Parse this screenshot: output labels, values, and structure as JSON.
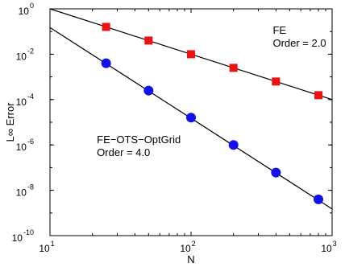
{
  "chart_data": {
    "type": "line",
    "xscale": "log",
    "yscale": "log",
    "xlim": [
      10,
      1000
    ],
    "ylim": [
      1e-10,
      1
    ],
    "xlabel": "N",
    "ylabel": "L∞ Error",
    "grid": false,
    "x_ticks": [
      {
        "value": 10,
        "mantissa": "10",
        "exp": "1"
      },
      {
        "value": 100,
        "mantissa": "10",
        "exp": "2"
      },
      {
        "value": 1000,
        "mantissa": "10",
        "exp": "3"
      }
    ],
    "y_ticks": [
      {
        "value": 1,
        "mantissa": "10",
        "exp": "0"
      },
      {
        "value": 0.01,
        "mantissa": "10",
        "exp": "-2"
      },
      {
        "value": 0.0001,
        "mantissa": "10",
        "exp": "-4"
      },
      {
        "value": 1e-06,
        "mantissa": "10",
        "exp": "-6"
      },
      {
        "value": 1e-08,
        "mantissa": "10",
        "exp": "-8"
      },
      {
        "value": 1e-10,
        "mantissa": "10",
        "exp": "-10"
      }
    ],
    "series": [
      {
        "marker": "square",
        "color": "#ee1111",
        "points": [
          {
            "x": 25,
            "y": 0.16
          },
          {
            "x": 50,
            "y": 0.04
          },
          {
            "x": 100,
            "y": 0.01
          },
          {
            "x": 200,
            "y": 0.0025
          },
          {
            "x": 400,
            "y": 0.000625
          },
          {
            "x": 800,
            "y": 0.000156
          }
        ],
        "fit": [
          {
            "x": 10,
            "y": 1.0
          },
          {
            "x": 1000,
            "y": 0.0001
          }
        ]
      },
      {
        "marker": "circle",
        "color": "#1111ee",
        "points": [
          {
            "x": 25,
            "y": 0.004
          },
          {
            "x": 50,
            "y": 0.00025
          },
          {
            "x": 100,
            "y": 1.6e-05
          },
          {
            "x": 200,
            "y": 1e-06
          },
          {
            "x": 400,
            "y": 6e-08
          },
          {
            "x": 800,
            "y": 4e-09
          }
        ],
        "fit": [
          {
            "x": 10,
            "y": 0.15
          },
          {
            "x": 1000,
            "y": 1.5e-09
          }
        ]
      }
    ],
    "annotations": [
      {
        "lines": [
          "FE",
          "Order = 2.0"
        ],
        "x": 380,
        "y": 0.08
      },
      {
        "lines": [
          "FE−OTS−OptGrid",
          "Order = 4.0"
        ],
        "x": 21.5,
        "y": 1.2e-06
      }
    ]
  }
}
